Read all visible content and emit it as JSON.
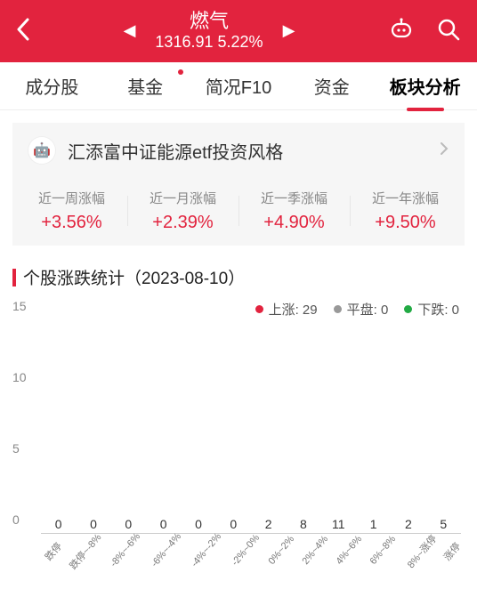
{
  "colors": {
    "brand": "#e2233e",
    "up": "#e2233e",
    "flat": "#999999",
    "down": "#22aa44"
  },
  "header": {
    "title": "燃气",
    "price": "1316.91",
    "change": "5.22%"
  },
  "tabs": [
    {
      "label": "成分股",
      "active": false,
      "dot": false
    },
    {
      "label": "基金",
      "active": false,
      "dot": true
    },
    {
      "label": "简况F10",
      "active": false,
      "dot": false
    },
    {
      "label": "资金",
      "active": false,
      "dot": false
    },
    {
      "label": "板块分析",
      "active": true,
      "dot": false
    }
  ],
  "promo": {
    "text": "汇添富中证能源etf投资风格"
  },
  "periodStats": [
    {
      "label": "近一周涨幅",
      "value": "+3.56%"
    },
    {
      "label": "近一月涨幅",
      "value": "+2.39%"
    },
    {
      "label": "近一季涨幅",
      "value": "+4.90%"
    },
    {
      "label": "近一年涨幅",
      "value": "+9.50%"
    }
  ],
  "chart": {
    "title": "个股涨跌统计（2023-08-10）",
    "legend": {
      "up": {
        "label": "上涨",
        "count": 29
      },
      "flat": {
        "label": "平盘",
        "count": 0
      },
      "down": {
        "label": "下跌",
        "count": 0
      }
    },
    "yTicks": [
      0,
      5,
      10,
      15
    ],
    "yMax": 15,
    "bars": [
      {
        "label": "跌停",
        "value": 0,
        "seg": "down"
      },
      {
        "label": "跌停~-8%",
        "value": 0,
        "seg": "down"
      },
      {
        "label": "-8%~-6%",
        "value": 0,
        "seg": "down"
      },
      {
        "label": "-6%~-4%",
        "value": 0,
        "seg": "down"
      },
      {
        "label": "-4%~-2%",
        "value": 0,
        "seg": "down"
      },
      {
        "label": "-2%~0%",
        "value": 0,
        "seg": "down"
      },
      {
        "label": "0%~2%",
        "value": 2,
        "seg": "up"
      },
      {
        "label": "2%~4%",
        "value": 8,
        "seg": "up"
      },
      {
        "label": "4%~6%",
        "value": 11,
        "seg": "up"
      },
      {
        "label": "6%~8%",
        "value": 1,
        "seg": "up"
      },
      {
        "label": "8%~涨停",
        "value": 2,
        "seg": "up"
      },
      {
        "label": "涨停",
        "value": 5,
        "seg": "up"
      }
    ]
  }
}
